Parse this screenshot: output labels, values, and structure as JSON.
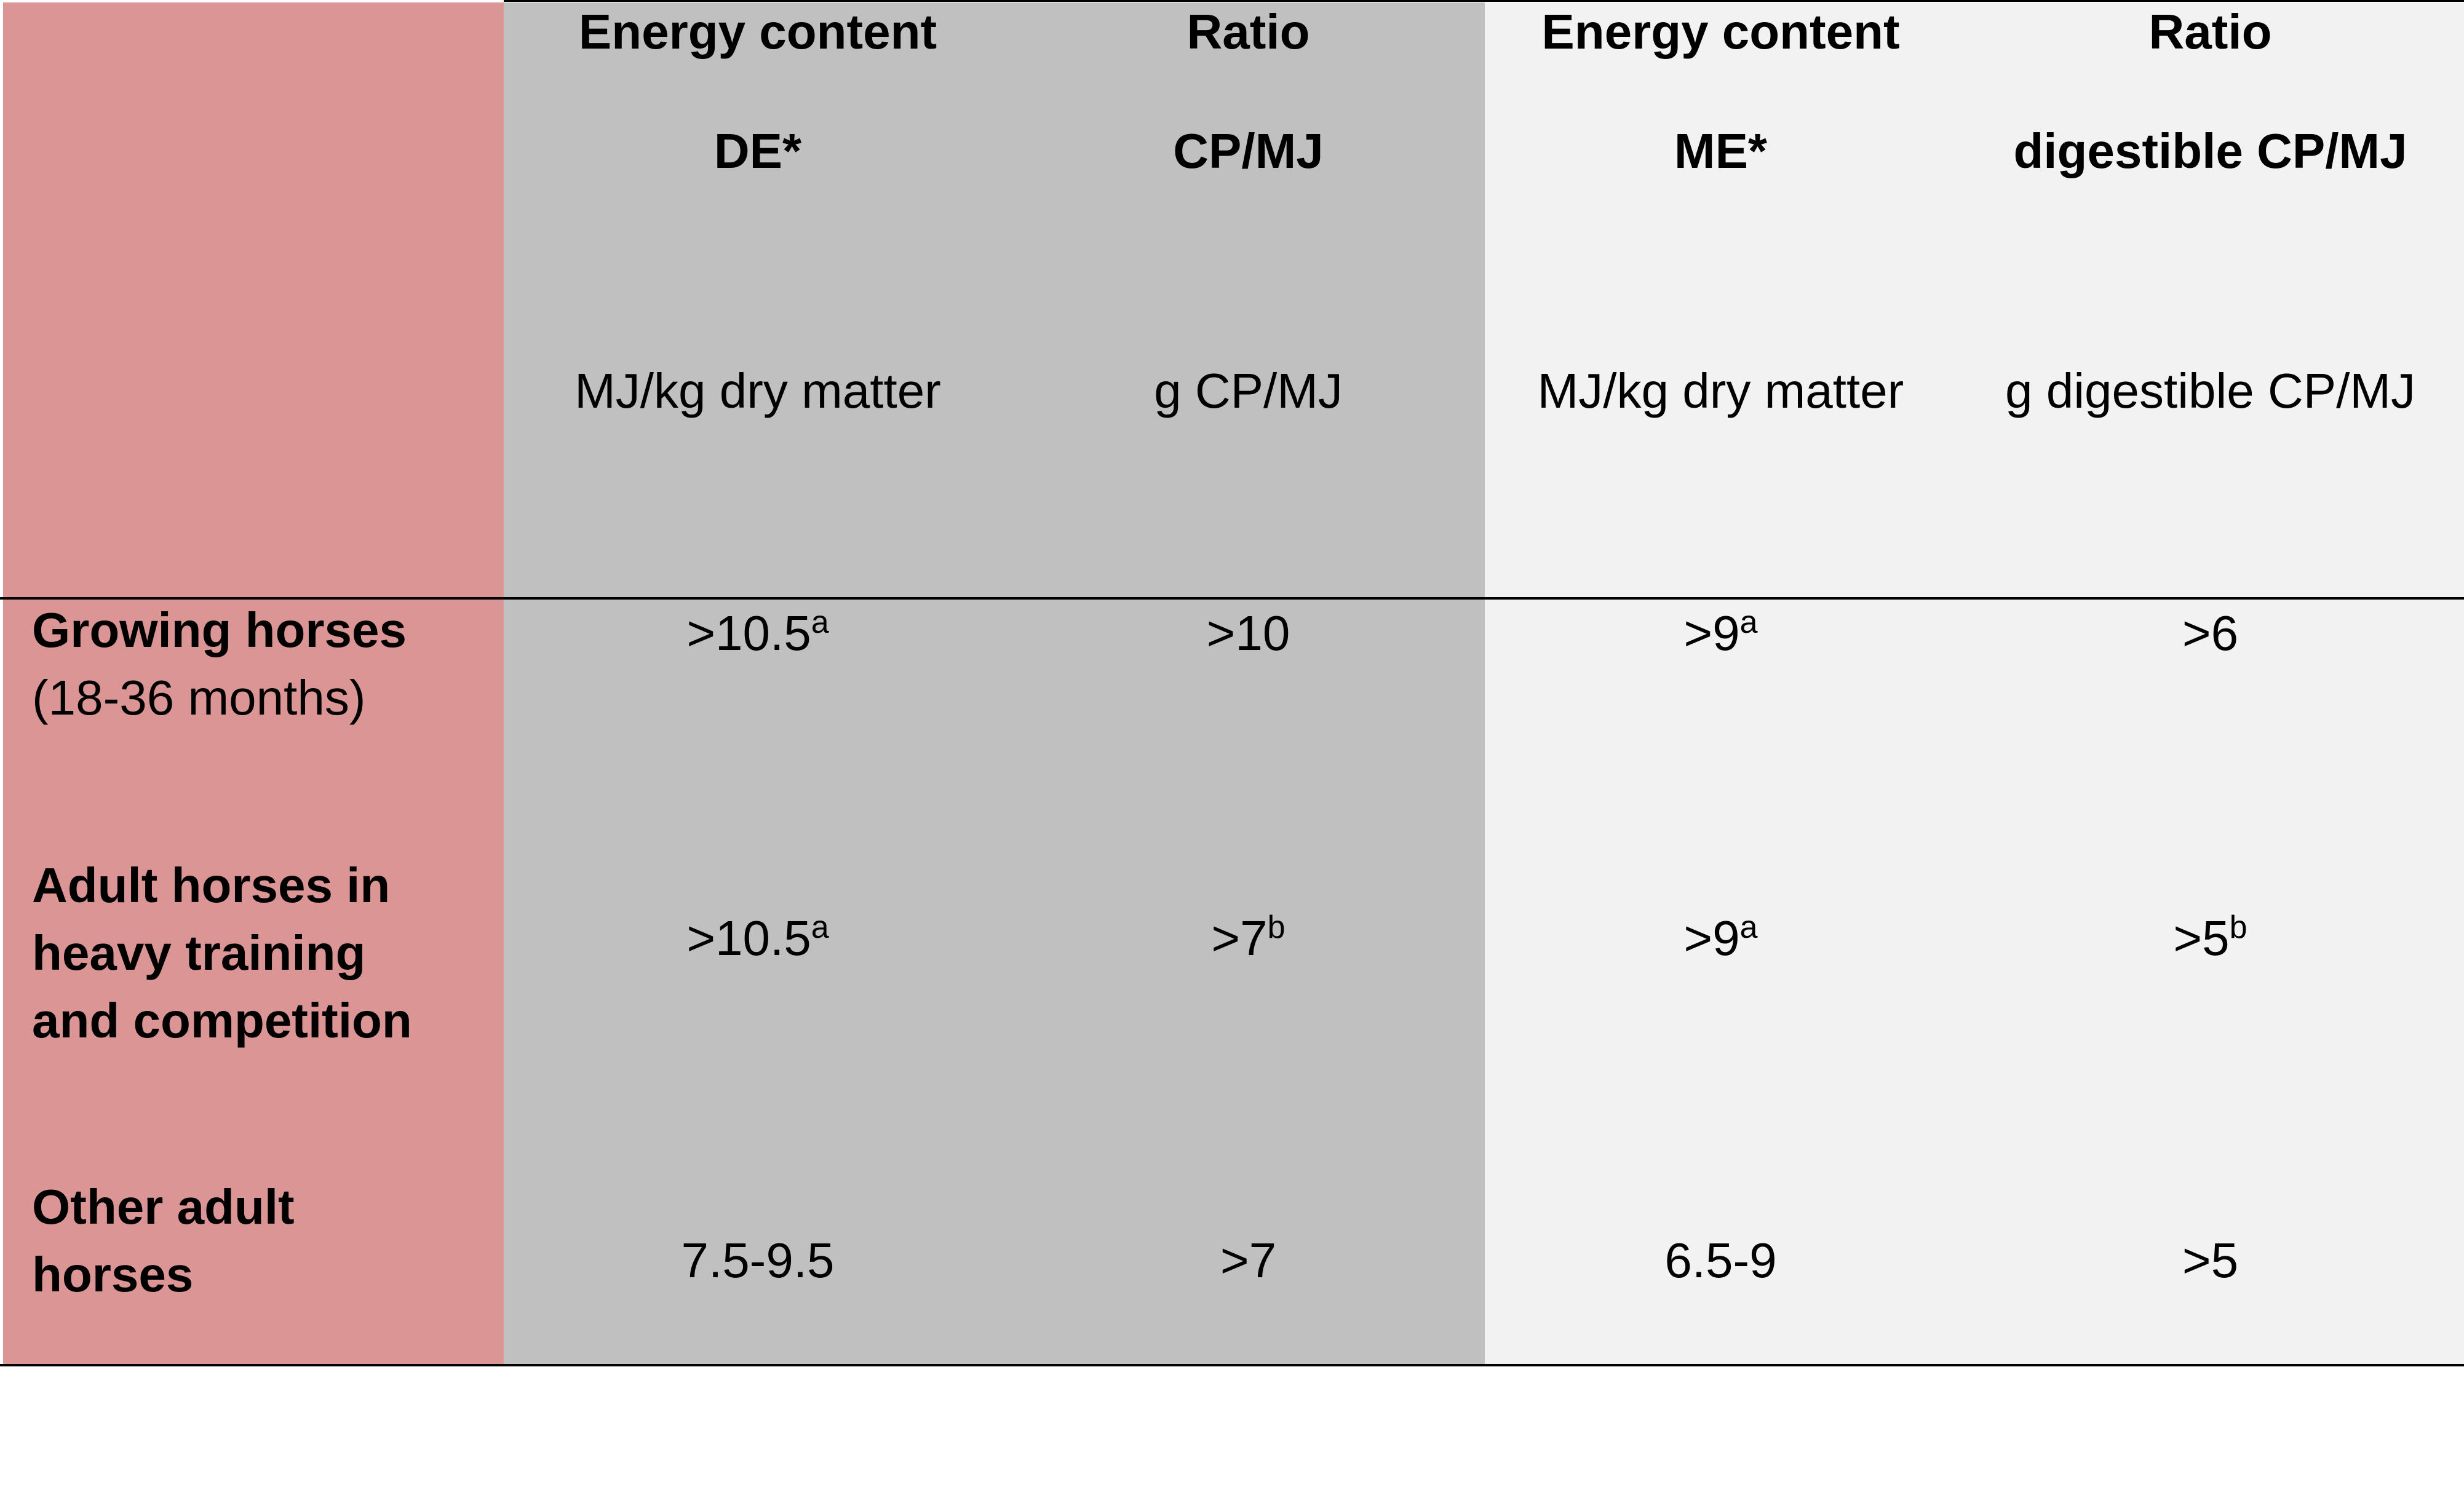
{
  "colors": {
    "row_header_bg": "#db9595",
    "de_columns_bg": "#c0c0c0",
    "me_columns_bg": "#f2f2f2",
    "rule": "#000000"
  },
  "table": {
    "columns": [
      {
        "title": "Energy content",
        "subtitle": "DE*",
        "unit": "MJ/kg dry matter"
      },
      {
        "title": "Ratio",
        "subtitle": "CP/MJ",
        "unit": "g CP/MJ"
      },
      {
        "title": "Energy content",
        "subtitle": "ME*",
        "unit": "MJ/kg dry matter"
      },
      {
        "title": "Ratio",
        "subtitle": "digestible CP/MJ",
        "unit": "g digestible CP/MJ"
      }
    ],
    "rows": [
      {
        "label_lines": [
          "Growing horses"
        ],
        "label_note": "(18-36 months)",
        "cells": [
          {
            "value": ">10.5",
            "sup": "a"
          },
          {
            "value": ">10",
            "sup": ""
          },
          {
            "value": ">9",
            "sup": "a"
          },
          {
            "value": ">6",
            "sup": ""
          }
        ]
      },
      {
        "label_lines": [
          "Adult horses in",
          "heavy training",
          "and competition"
        ],
        "label_note": "",
        "cells": [
          {
            "value": ">10.5",
            "sup": "a"
          },
          {
            "value": ">7",
            "sup": "b"
          },
          {
            "value": ">9",
            "sup": "a"
          },
          {
            "value": ">5",
            "sup": "b"
          }
        ]
      },
      {
        "label_lines": [
          "Other adult",
          "horses"
        ],
        "label_note": "",
        "cells": [
          {
            "value": "7.5-9.5",
            "sup": ""
          },
          {
            "value": ">7",
            "sup": ""
          },
          {
            "value": "6.5-9",
            "sup": ""
          },
          {
            "value": ">5",
            "sup": ""
          }
        ]
      }
    ]
  }
}
